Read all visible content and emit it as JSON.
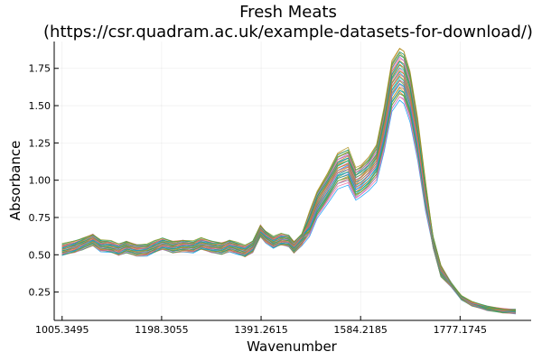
{
  "chart_data": {
    "type": "line",
    "title": "Fresh Meats",
    "subtitle": "(https://csr.quadram.ac.uk/example-datasets-for-download/)",
    "xlabel": "Wavenumber",
    "ylabel": "Absorbance",
    "xlim": [
      990,
      1915
    ],
    "ylim": [
      0.06,
      1.93
    ],
    "grid": true,
    "legend": "none",
    "x_ticks": [
      {
        "value": 1005.3495,
        "label": "1005.3495"
      },
      {
        "value": 1198.3055,
        "label": "1198.3055"
      },
      {
        "value": 1391.2615,
        "label": "1391.2615"
      },
      {
        "value": 1584.2185,
        "label": "1584.2185"
      },
      {
        "value": 1777.1745,
        "label": "1777.1745"
      }
    ],
    "y_ticks": [
      {
        "value": 0.25,
        "label": "0.25"
      },
      {
        "value": 0.5,
        "label": "0.50"
      },
      {
        "value": 0.75,
        "label": "0.75"
      },
      {
        "value": 1.0,
        "label": "1.00"
      },
      {
        "value": 1.25,
        "label": "1.25"
      },
      {
        "value": 1.5,
        "label": "1.50"
      },
      {
        "value": 1.75,
        "label": "1.75"
      }
    ],
    "palette": [
      "#009af9",
      "#e26f46",
      "#3ea44e",
      "#c271d2",
      "#ac8e18",
      "#00a9ad",
      "#ed5e93",
      "#c68225",
      "#00a98d",
      "#8e971d"
    ],
    "x": [
      1005,
      1030,
      1045,
      1065,
      1080,
      1100,
      1115,
      1130,
      1150,
      1170,
      1185,
      1200,
      1220,
      1240,
      1260,
      1275,
      1295,
      1315,
      1330,
      1345,
      1360,
      1375,
      1390,
      1400,
      1415,
      1430,
      1445,
      1455,
      1470,
      1485,
      1500,
      1520,
      1540,
      1560,
      1575,
      1585,
      1600,
      1615,
      1630,
      1645,
      1660,
      1668,
      1680,
      1695,
      1710,
      1725,
      1740,
      1760,
      1780,
      1800,
      1830,
      1860,
      1885
    ],
    "baseline": [
      0.53,
      0.55,
      0.57,
      0.6,
      0.56,
      0.55,
      0.53,
      0.55,
      0.53,
      0.53,
      0.55,
      0.57,
      0.55,
      0.56,
      0.55,
      0.57,
      0.55,
      0.54,
      0.56,
      0.54,
      0.52,
      0.55,
      0.66,
      0.62,
      0.58,
      0.6,
      0.59,
      0.55,
      0.6,
      0.71,
      0.84,
      0.95,
      1.07,
      1.1,
      0.98,
      1.0,
      1.05,
      1.12,
      1.35,
      1.64,
      1.72,
      1.7,
      1.57,
      1.28,
      0.9,
      0.58,
      0.39,
      0.3,
      0.21,
      0.17,
      0.14,
      0.125,
      0.12
    ],
    "series_count": 40
  }
}
